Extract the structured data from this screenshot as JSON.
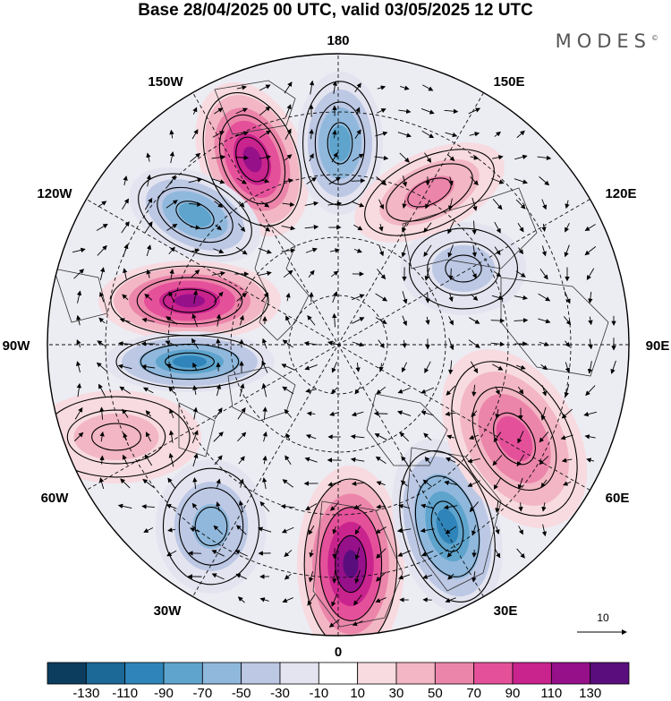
{
  "title": "Base 28/04/2025 00 UTC, valid 03/05/2025 12 UTC",
  "brand": {
    "text": "MODES",
    "mark": "©"
  },
  "map": {
    "projection": "north polar stereographic",
    "longitude_labels": {
      "top": "180",
      "upper_left": "150W",
      "upper_right": "150E",
      "left_upper": "120W",
      "right_upper": "120E",
      "left": "90W",
      "right": "90E",
      "left_lower": "60W",
      "right_lower": "60E",
      "lower_left": "30W",
      "lower_right": "30E",
      "bottom": "0"
    },
    "anomaly_centers": [
      {
        "name": "pos-ne-pacific",
        "sign": "positive",
        "level": 110
      },
      {
        "name": "neg-bering",
        "sign": "negative",
        "level": -70
      },
      {
        "name": "neg-alaska",
        "sign": "negative",
        "level": -70
      },
      {
        "name": "pos-canada",
        "sign": "positive",
        "level": 110
      },
      {
        "name": "neg-hudson",
        "sign": "negative",
        "level": -90
      },
      {
        "name": "pos-atlantic",
        "sign": "positive",
        "level": 30
      },
      {
        "name": "neg-n-atlantic",
        "sign": "negative",
        "level": -50
      },
      {
        "name": "pos-europe",
        "sign": "positive",
        "level": 130
      },
      {
        "name": "neg-scandinavia",
        "sign": "negative",
        "level": -90
      },
      {
        "name": "pos-w-siberia",
        "sign": "positive",
        "level": 70
      },
      {
        "name": "neg-c-siberia",
        "sign": "negative",
        "level": -30
      },
      {
        "name": "pos-e-siberia",
        "sign": "positive",
        "level": 50
      }
    ]
  },
  "vector_scale": {
    "label": "10"
  },
  "colorbar": {
    "colors": [
      "#0c3d5e",
      "#1c6896",
      "#2f85ba",
      "#5ea4cd",
      "#8fb8dc",
      "#bcc8e4",
      "#e4e4f0",
      "#ffffff",
      "#f7dbe0",
      "#f2b6c4",
      "#ec85aa",
      "#e4519a",
      "#c9238e",
      "#96108a",
      "#5a0e7e"
    ],
    "labels": [
      "-130",
      "-110",
      "-90",
      "-70",
      "-50",
      "-30",
      "-10",
      "10",
      "30",
      "50",
      "70",
      "90",
      "110",
      "130"
    ]
  }
}
